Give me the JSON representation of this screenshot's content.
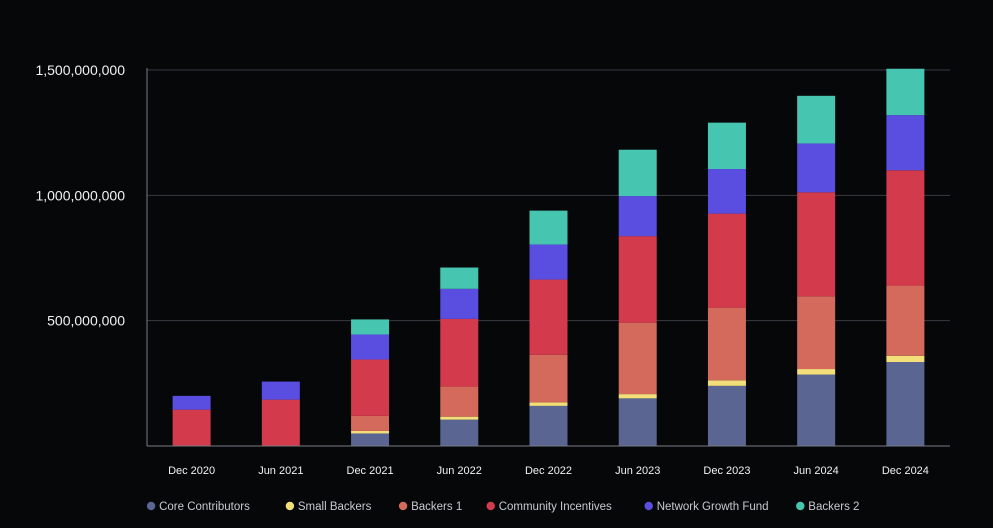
{
  "chart_data": {
    "type": "bar",
    "stacked": true,
    "title": "",
    "xlabel": "",
    "ylabel": "",
    "ylim": [
      0,
      1500000000
    ],
    "y_ticks": [
      500000000,
      1000000000,
      1500000000
    ],
    "y_tick_labels": [
      "500,000,000",
      "1,000,000,000",
      "1,500,000,000"
    ],
    "grid": true,
    "legend_position": "bottom",
    "categories": [
      "Dec 2020",
      "Jun 2021",
      "Dec 2021",
      "Jun 2022",
      "Dec 2022",
      "Jun 2023",
      "Dec 2023",
      "Jun 2024",
      "Dec 2024"
    ],
    "series": [
      {
        "name": "Core Contributors",
        "color": "#5a6592",
        "values": [
          0,
          0,
          50000000,
          105000000,
          160000000,
          190000000,
          240000000,
          285000000,
          335000000
        ]
      },
      {
        "name": "Small Backers",
        "color": "#f2df7a",
        "values": [
          0,
          0,
          10000000,
          12000000,
          14000000,
          17000000,
          22000000,
          22000000,
          25000000
        ]
      },
      {
        "name": "Backers 1",
        "color": "#d46a5c",
        "values": [
          0,
          0,
          60000000,
          120000000,
          190000000,
          285000000,
          290000000,
          290000000,
          280000000
        ]
      },
      {
        "name": "Community Incentives",
        "color": "#d33a4c",
        "values": [
          145000000,
          185000000,
          225000000,
          270000000,
          300000000,
          345000000,
          375000000,
          415000000,
          460000000
        ]
      },
      {
        "name": "Network Growth Fund",
        "color": "#5a4ee0",
        "values": [
          55000000,
          72000000,
          100000000,
          120000000,
          140000000,
          160000000,
          178000000,
          195000000,
          220000000
        ]
      },
      {
        "name": "Backers 2",
        "color": "#46c6b0",
        "values": [
          0,
          0,
          60000000,
          85000000,
          135000000,
          185000000,
          185000000,
          190000000,
          185000000
        ]
      }
    ]
  }
}
